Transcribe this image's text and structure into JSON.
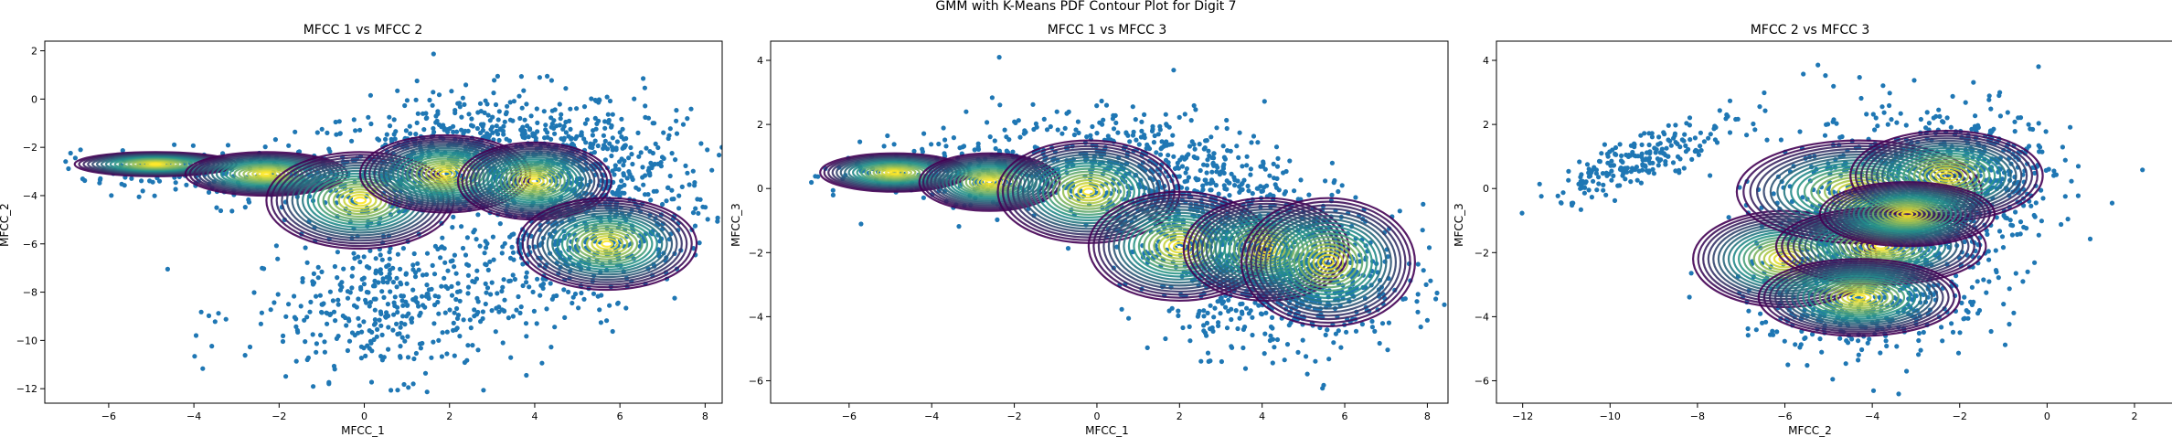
{
  "figure": {
    "suptitle": "GMM with K-Means PDF Contour Plot for Digit 7"
  },
  "colors": {
    "points": "#1f77b4",
    "contour_low": "#440154",
    "contour_mid": "#21918c",
    "contour_high": "#fde725"
  },
  "chart_data": [
    {
      "type": "scatter",
      "title": "MFCC 1 vs MFCC 2",
      "xlabel": "MFCC_1",
      "ylabel": "MFCC_2",
      "xlim": [
        -7.5,
        8.4
      ],
      "ylim": [
        -12.6,
        2.4
      ],
      "xticks": [
        -6,
        -4,
        -2,
        0,
        2,
        4,
        6,
        8
      ],
      "yticks": [
        -12,
        -10,
        -8,
        -6,
        -4,
        -2,
        0,
        2
      ],
      "grid": false,
      "scatter_clusters": [
        {
          "cx": 2.5,
          "cy": -2.5,
          "sx": 2.0,
          "sy": 1.4,
          "n": 700,
          "rho": 0.2
        },
        {
          "cx": 5.5,
          "cy": -3.5,
          "sx": 1.3,
          "sy": 1.5,
          "n": 400,
          "rho": 0.0
        },
        {
          "cx": 0.8,
          "cy": -8.5,
          "sx": 1.8,
          "sy": 1.5,
          "n": 450,
          "rho": 0.1
        },
        {
          "cx": -2.5,
          "cy": -3.2,
          "sx": 1.7,
          "sy": 0.6,
          "n": 160,
          "rho": 0.0
        },
        {
          "cx": -5.2,
          "cy": -2.8,
          "sx": 0.9,
          "sy": 0.4,
          "n": 40,
          "rho": 0.0
        },
        {
          "cx": 5.2,
          "cy": -6.2,
          "sx": 1.2,
          "sy": 1.2,
          "n": 200,
          "rho": 0.0
        }
      ],
      "gmm_components": [
        {
          "mean": [
            -4.9,
            -2.7
          ],
          "rx": 1.9,
          "ry": 0.5
        },
        {
          "mean": [
            -2.3,
            -3.1
          ],
          "rx": 1.9,
          "ry": 0.9
        },
        {
          "mean": [
            -0.1,
            -4.2
          ],
          "rx": 2.2,
          "ry": 2.0
        },
        {
          "mean": [
            1.9,
            -3.1
          ],
          "rx": 2.0,
          "ry": 1.6
        },
        {
          "mean": [
            4.0,
            -3.4
          ],
          "rx": 1.8,
          "ry": 1.6
        },
        {
          "mean": [
            5.7,
            -6.0
          ],
          "rx": 2.1,
          "ry": 1.9
        }
      ]
    },
    {
      "type": "scatter",
      "title": "MFCC 1 vs MFCC 3",
      "xlabel": "MFCC_1",
      "ylabel": "MFCC_3",
      "xlim": [
        -7.9,
        8.5
      ],
      "ylim": [
        -6.7,
        4.6
      ],
      "xticks": [
        -6,
        -4,
        -2,
        0,
        2,
        4,
        6,
        8
      ],
      "yticks": [
        -6,
        -4,
        -2,
        0,
        2,
        4
      ],
      "grid": false,
      "scatter_clusters": [
        {
          "cx": 1.2,
          "cy": 0.6,
          "sx": 1.8,
          "sy": 0.9,
          "n": 550,
          "rho": -0.2
        },
        {
          "cx": 4.6,
          "cy": -2.8,
          "sx": 1.4,
          "sy": 1.1,
          "n": 700,
          "rho": 0.0
        },
        {
          "cx": -2.8,
          "cy": 0.5,
          "sx": 1.3,
          "sy": 0.6,
          "n": 200,
          "rho": 0.0
        },
        {
          "cx": -5.3,
          "cy": 0.5,
          "sx": 0.8,
          "sy": 0.3,
          "n": 30,
          "rho": 0.0
        },
        {
          "cx": 2.5,
          "cy": -1.6,
          "sx": 1.0,
          "sy": 0.8,
          "n": 200,
          "rho": 0.0
        }
      ],
      "gmm_components": [
        {
          "mean": [
            -4.9,
            0.5
          ],
          "rx": 1.8,
          "ry": 0.6
        },
        {
          "mean": [
            -2.6,
            0.2
          ],
          "rx": 1.7,
          "ry": 0.9
        },
        {
          "mean": [
            -0.2,
            -0.1
          ],
          "rx": 2.2,
          "ry": 1.6
        },
        {
          "mean": [
            2.0,
            -1.8
          ],
          "rx": 2.2,
          "ry": 1.7
        },
        {
          "mean": [
            4.1,
            -1.9
          ],
          "rx": 2.0,
          "ry": 1.6
        },
        {
          "mean": [
            5.6,
            -2.3
          ],
          "rx": 2.1,
          "ry": 2.0
        }
      ]
    },
    {
      "type": "scatter",
      "title": "MFCC 2 vs MFCC 3",
      "xlabel": "MFCC_2",
      "ylabel": "MFCC_3",
      "xlim": [
        -12.6,
        2.9
      ],
      "ylim": [
        -6.7,
        4.6
      ],
      "xticks": [
        -12,
        -10,
        -8,
        -6,
        -4,
        -2,
        0,
        2
      ],
      "yticks": [
        -6,
        -4,
        -2,
        0,
        2,
        4
      ],
      "grid": false,
      "scatter_clusters": [
        {
          "cx": -9.2,
          "cy": 1.0,
          "sx": 1.1,
          "sy": 0.7,
          "n": 220,
          "rho": 0.85
        },
        {
          "cx": -3.5,
          "cy": -1.0,
          "sx": 1.4,
          "sy": 1.6,
          "n": 900,
          "rho": 0.0
        },
        {
          "cx": -1.4,
          "cy": 0.5,
          "sx": 1.0,
          "sy": 1.0,
          "n": 250,
          "rho": 0.0
        },
        {
          "cx": -4.5,
          "cy": -3.6,
          "sx": 1.2,
          "sy": 0.8,
          "n": 250,
          "rho": 0.0
        }
      ],
      "gmm_components": [
        {
          "mean": [
            -6.0,
            -2.2
          ],
          "rx": 2.1,
          "ry": 1.5
        },
        {
          "mean": [
            -4.3,
            -0.1
          ],
          "rx": 2.8,
          "ry": 1.6
        },
        {
          "mean": [
            -3.8,
            -1.8
          ],
          "rx": 2.4,
          "ry": 1.2
        },
        {
          "mean": [
            -2.3,
            0.4
          ],
          "rx": 2.2,
          "ry": 1.4
        },
        {
          "mean": [
            -4.3,
            -3.4
          ],
          "rx": 2.3,
          "ry": 1.2
        },
        {
          "mean": [
            -3.2,
            -0.8
          ],
          "rx": 2.0,
          "ry": 1.0
        }
      ]
    }
  ]
}
